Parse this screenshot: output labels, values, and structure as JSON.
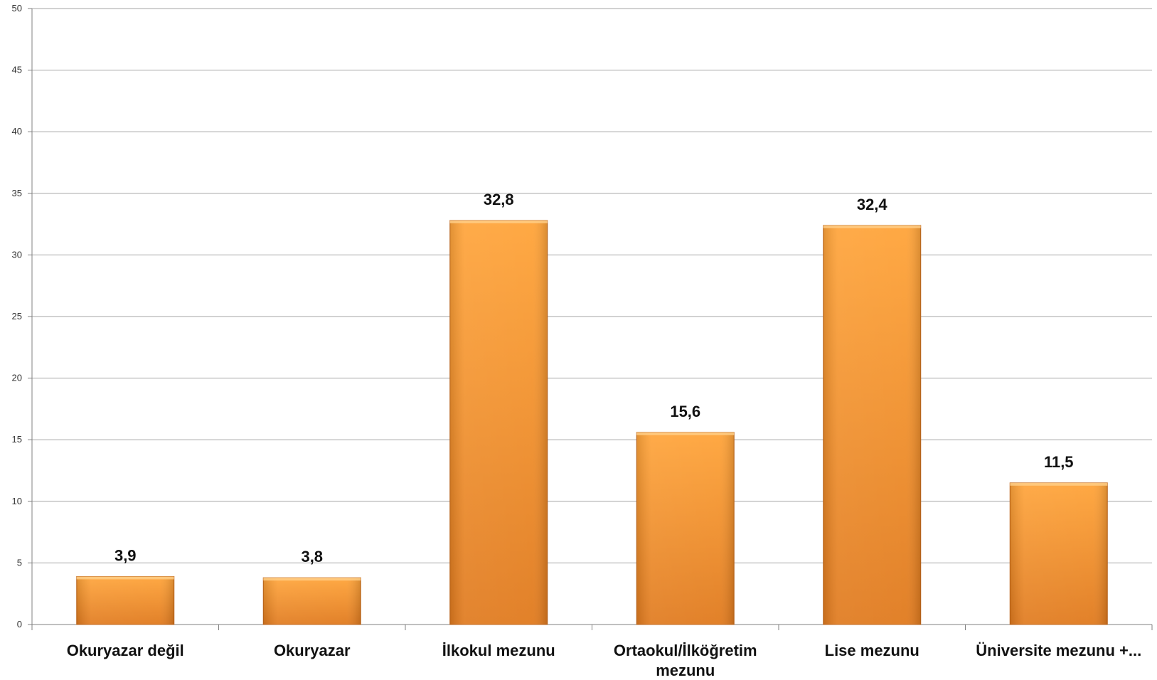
{
  "chart_data": {
    "type": "bar",
    "title": "",
    "xlabel": "",
    "ylabel": "",
    "categories": [
      [
        "Okuryazar değil"
      ],
      [
        "Okuryazar"
      ],
      [
        "İlkokul mezunu"
      ],
      [
        "Ortaokul/İlköğretim",
        "mezunu"
      ],
      [
        "Lise mezunu"
      ],
      [
        "Üniversite mezunu +..."
      ]
    ],
    "values": [
      3.9,
      3.8,
      32.8,
      15.6,
      32.4,
      11.5
    ],
    "value_labels": [
      "3,9",
      "3,8",
      "32,8",
      "15,6",
      "32,4",
      "11,5"
    ],
    "ylim": [
      0,
      50
    ],
    "yticks": [
      0,
      5,
      10,
      15,
      20,
      25,
      30,
      35,
      40,
      45,
      50
    ],
    "grid": true,
    "legend": "none",
    "colors": {
      "bar_top": "#FFA43A",
      "bar_bottom": "#E07A1E",
      "bar_edge": "#C0661A",
      "grid": "#A6A6A6",
      "axis": "#808080"
    }
  }
}
